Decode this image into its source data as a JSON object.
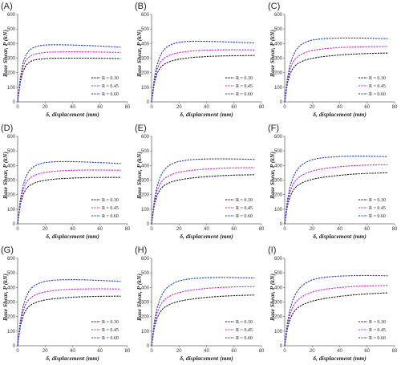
{
  "colors": {
    "R030": "#1a1a1a",
    "R045": "#d21fd2",
    "R060": "#1f3ec8",
    "axis": "#666666"
  },
  "chart_data": [
    {
      "type": "line",
      "panel": "(A)",
      "xlabel": "δ, displacement (mm)",
      "ylabel": "Base Shear, P (kN)",
      "xlim": [
        0,
        80
      ],
      "ylim": [
        0,
        600
      ],
      "xticks": [
        0,
        20,
        40,
        60,
        80
      ],
      "yticks": [
        0,
        100,
        200,
        300,
        400,
        500,
        600
      ],
      "legend": "bottom-right",
      "x": [
        0,
        2,
        4,
        6,
        8,
        10,
        12,
        15,
        18,
        20,
        25,
        30,
        40,
        50,
        60,
        70,
        75
      ],
      "series": [
        {
          "name": "R = 0.30",
          "style": "R030",
          "values": [
            0,
            140,
            210,
            250,
            268,
            280,
            287,
            292,
            295,
            297,
            299,
            300,
            300,
            300,
            299,
            298,
            297
          ]
        },
        {
          "name": "R = 0.45",
          "style": "R045",
          "values": [
            0,
            160,
            245,
            285,
            305,
            318,
            326,
            333,
            337,
            339,
            342,
            343,
            344,
            343,
            342,
            340,
            339
          ]
        },
        {
          "name": "R = 0.60",
          "style": "R060",
          "values": [
            0,
            170,
            270,
            320,
            348,
            365,
            375,
            384,
            388,
            390,
            392,
            392,
            390,
            387,
            383,
            378,
            375
          ]
        }
      ]
    },
    {
      "type": "line",
      "panel": "(B)",
      "xlabel": "δ, displacement (mm)",
      "ylabel": "Base Shear, P (kN)",
      "xlim": [
        0,
        80
      ],
      "ylim": [
        0,
        600
      ],
      "xticks": [
        0,
        20,
        40,
        60,
        80
      ],
      "yticks": [
        0,
        100,
        200,
        300,
        400,
        500,
        600
      ],
      "legend": "bottom-right",
      "x": [
        0,
        2,
        4,
        6,
        8,
        10,
        12,
        15,
        18,
        20,
        25,
        30,
        40,
        50,
        60,
        70,
        75
      ],
      "series": [
        {
          "name": "R = 0.30",
          "style": "R030",
          "values": [
            0,
            130,
            195,
            230,
            250,
            262,
            272,
            282,
            289,
            293,
            300,
            305,
            311,
            315,
            317,
            318,
            318
          ]
        },
        {
          "name": "R = 0.45",
          "style": "R045",
          "values": [
            0,
            150,
            225,
            268,
            290,
            305,
            316,
            327,
            334,
            338,
            345,
            350,
            355,
            357,
            358,
            357,
            356
          ]
        },
        {
          "name": "R = 0.60",
          "style": "R060",
          "values": [
            0,
            165,
            255,
            310,
            345,
            368,
            382,
            396,
            405,
            409,
            414,
            416,
            415,
            413,
            410,
            406,
            404
          ]
        }
      ]
    },
    {
      "type": "line",
      "panel": "(C)",
      "xlabel": "δ, displacement (mm)",
      "ylabel": "Base Shear, P (kN)",
      "xlim": [
        0,
        80
      ],
      "ylim": [
        0,
        600
      ],
      "xticks": [
        0,
        20,
        40,
        60,
        80
      ],
      "yticks": [
        0,
        100,
        200,
        300,
        400,
        500,
        600
      ],
      "legend": "bottom-right",
      "x": [
        0,
        2,
        4,
        6,
        8,
        10,
        12,
        15,
        18,
        20,
        25,
        30,
        40,
        50,
        60,
        70,
        75
      ],
      "series": [
        {
          "name": "R = 0.30",
          "style": "R030",
          "values": [
            0,
            130,
            195,
            230,
            252,
            266,
            276,
            287,
            295,
            299,
            307,
            313,
            322,
            328,
            332,
            334,
            335
          ]
        },
        {
          "name": "R = 0.45",
          "style": "R045",
          "values": [
            0,
            150,
            228,
            272,
            297,
            314,
            326,
            339,
            348,
            352,
            360,
            366,
            373,
            377,
            379,
            380,
            380
          ]
        },
        {
          "name": "R = 0.60",
          "style": "R060",
          "values": [
            0,
            165,
            258,
            315,
            352,
            377,
            393,
            409,
            419,
            424,
            431,
            435,
            438,
            438,
            437,
            435,
            434
          ]
        }
      ]
    },
    {
      "type": "line",
      "panel": "(D)",
      "xlabel": "δ, displacement (mm)",
      "ylabel": "Base Shear, P (kN)",
      "xlim": [
        0,
        80
      ],
      "ylim": [
        0,
        600
      ],
      "xticks": [
        0,
        20,
        40,
        60,
        80
      ],
      "yticks": [
        0,
        100,
        200,
        300,
        400,
        500,
        600
      ],
      "legend": "bottom-right",
      "x": [
        0,
        2,
        4,
        6,
        8,
        10,
        12,
        15,
        18,
        20,
        25,
        30,
        40,
        50,
        60,
        70,
        75
      ],
      "series": [
        {
          "name": "R = 0.30",
          "style": "R030",
          "values": [
            0,
            135,
            200,
            238,
            258,
            270,
            279,
            289,
            295,
            299,
            305,
            309,
            314,
            317,
            318,
            318,
            318
          ]
        },
        {
          "name": "R = 0.45",
          "style": "R045",
          "values": [
            0,
            155,
            235,
            280,
            305,
            320,
            331,
            342,
            349,
            353,
            359,
            363,
            367,
            369,
            369,
            368,
            367
          ]
        },
        {
          "name": "R = 0.60",
          "style": "R060",
          "values": [
            0,
            170,
            265,
            322,
            358,
            380,
            394,
            408,
            416,
            420,
            425,
            427,
            427,
            424,
            420,
            416,
            413
          ]
        }
      ]
    },
    {
      "type": "line",
      "panel": "(E)",
      "xlabel": "δ, displacement (mm)",
      "ylabel": "Base Shear, P (kN)",
      "xlim": [
        0,
        80
      ],
      "ylim": [
        0,
        600
      ],
      "xticks": [
        0,
        20,
        40,
        60,
        80
      ],
      "yticks": [
        0,
        100,
        200,
        300,
        400,
        500,
        600
      ],
      "legend": "bottom-right",
      "x": [
        0,
        2,
        4,
        6,
        8,
        10,
        12,
        15,
        18,
        20,
        25,
        30,
        40,
        50,
        60,
        70,
        75
      ],
      "series": [
        {
          "name": "R = 0.30",
          "style": "R030",
          "values": [
            0,
            130,
            195,
            232,
            254,
            268,
            278,
            289,
            297,
            301,
            309,
            315,
            324,
            330,
            334,
            336,
            337
          ]
        },
        {
          "name": "R = 0.45",
          "style": "R045",
          "values": [
            0,
            150,
            228,
            272,
            298,
            315,
            327,
            340,
            349,
            354,
            362,
            368,
            376,
            381,
            384,
            385,
            385
          ]
        },
        {
          "name": "R = 0.60",
          "style": "R060",
          "values": [
            0,
            165,
            258,
            315,
            353,
            378,
            395,
            412,
            423,
            428,
            436,
            441,
            445,
            446,
            445,
            443,
            442
          ]
        }
      ]
    },
    {
      "type": "line",
      "panel": "(F)",
      "xlabel": "δ, displacement (mm)",
      "ylabel": "Base Shear, P (kN)",
      "xlim": [
        0,
        80
      ],
      "ylim": [
        0,
        600
      ],
      "xticks": [
        0,
        20,
        40,
        60,
        80
      ],
      "yticks": [
        0,
        100,
        200,
        300,
        400,
        500,
        600
      ],
      "legend": "bottom-right",
      "x": [
        0,
        2,
        4,
        6,
        8,
        10,
        12,
        15,
        18,
        20,
        25,
        30,
        40,
        50,
        60,
        70,
        75
      ],
      "series": [
        {
          "name": "R = 0.30",
          "style": "R030",
          "values": [
            0,
            125,
            190,
            228,
            252,
            267,
            278,
            291,
            300,
            305,
            315,
            322,
            333,
            341,
            346,
            349,
            350
          ]
        },
        {
          "name": "R = 0.45",
          "style": "R045",
          "values": [
            0,
            148,
            225,
            270,
            298,
            317,
            330,
            345,
            356,
            362,
            373,
            381,
            392,
            399,
            403,
            405,
            406
          ]
        },
        {
          "name": "R = 0.60",
          "style": "R060",
          "values": [
            0,
            165,
            258,
            316,
            355,
            382,
            401,
            420,
            433,
            440,
            450,
            456,
            462,
            464,
            464,
            462,
            461
          ]
        }
      ]
    },
    {
      "type": "line",
      "panel": "(G)",
      "xlabel": "δ, displacement (mm)",
      "ylabel": "Base Shear, P (kN)",
      "xlim": [
        0,
        80
      ],
      "ylim": [
        0,
        600
      ],
      "xticks": [
        0,
        20,
        40,
        60,
        80
      ],
      "yticks": [
        0,
        100,
        200,
        300,
        400,
        500,
        600
      ],
      "legend": "bottom-right",
      "x": [
        0,
        2,
        4,
        6,
        8,
        10,
        12,
        15,
        18,
        20,
        25,
        30,
        40,
        50,
        60,
        70,
        75
      ],
      "series": [
        {
          "name": "R = 0.30",
          "style": "R030",
          "values": [
            0,
            135,
            205,
            245,
            268,
            282,
            292,
            303,
            310,
            314,
            321,
            326,
            333,
            337,
            339,
            340,
            340
          ]
        },
        {
          "name": "R = 0.45",
          "style": "R045",
          "values": [
            0,
            158,
            240,
            287,
            315,
            332,
            344,
            357,
            365,
            369,
            377,
            382,
            388,
            390,
            391,
            390,
            389
          ]
        },
        {
          "name": "R = 0.60",
          "style": "R060",
          "values": [
            0,
            172,
            270,
            330,
            370,
            395,
            411,
            427,
            437,
            442,
            449,
            452,
            454,
            452,
            448,
            444,
            441
          ]
        }
      ]
    },
    {
      "type": "line",
      "panel": "(H)",
      "xlabel": "δ, displacement (mm)",
      "ylabel": "Base Shear, P (kN)",
      "xlim": [
        0,
        80
      ],
      "ylim": [
        0,
        600
      ],
      "xticks": [
        0,
        20,
        40,
        60,
        80
      ],
      "yticks": [
        0,
        100,
        200,
        300,
        400,
        500,
        600
      ],
      "legend": "bottom-right",
      "x": [
        0,
        2,
        4,
        6,
        8,
        10,
        12,
        15,
        18,
        20,
        25,
        30,
        40,
        50,
        60,
        70,
        75
      ],
      "series": [
        {
          "name": "R = 0.30",
          "style": "R030",
          "values": [
            0,
            125,
            190,
            228,
            252,
            267,
            278,
            291,
            300,
            305,
            314,
            321,
            332,
            339,
            344,
            347,
            348
          ]
        },
        {
          "name": "R = 0.45",
          "style": "R045",
          "values": [
            0,
            148,
            226,
            272,
            301,
            320,
            334,
            349,
            359,
            365,
            376,
            383,
            394,
            400,
            404,
            406,
            406
          ]
        },
        {
          "name": "R = 0.60",
          "style": "R060",
          "values": [
            0,
            165,
            259,
            318,
            358,
            386,
            405,
            425,
            438,
            445,
            455,
            461,
            467,
            469,
            468,
            466,
            465
          ]
        }
      ]
    },
    {
      "type": "line",
      "panel": "(I)",
      "xlabel": "δ, displacement (mm)",
      "ylabel": "Base Shear, P (kN)",
      "xlim": [
        0,
        80
      ],
      "ylim": [
        0,
        600
      ],
      "xticks": [
        0,
        20,
        40,
        60,
        80
      ],
      "yticks": [
        0,
        100,
        200,
        300,
        400,
        500,
        600
      ],
      "legend": "bottom-right",
      "x": [
        0,
        2,
        4,
        6,
        8,
        10,
        12,
        15,
        18,
        20,
        25,
        30,
        40,
        50,
        60,
        70,
        75
      ],
      "series": [
        {
          "name": "R = 0.30",
          "style": "R030",
          "values": [
            0,
            120,
            185,
            223,
            248,
            264,
            276,
            290,
            300,
            306,
            317,
            326,
            339,
            349,
            356,
            361,
            363
          ]
        },
        {
          "name": "R = 0.45",
          "style": "R045",
          "values": [
            0,
            145,
            222,
            268,
            298,
            318,
            333,
            350,
            361,
            368,
            380,
            389,
            400,
            407,
            411,
            413,
            414
          ]
        },
        {
          "name": "R = 0.60",
          "style": "R060",
          "values": [
            0,
            162,
            255,
            316,
            357,
            386,
            407,
            429,
            444,
            452,
            464,
            471,
            478,
            481,
            482,
            481,
            480
          ]
        }
      ]
    }
  ]
}
